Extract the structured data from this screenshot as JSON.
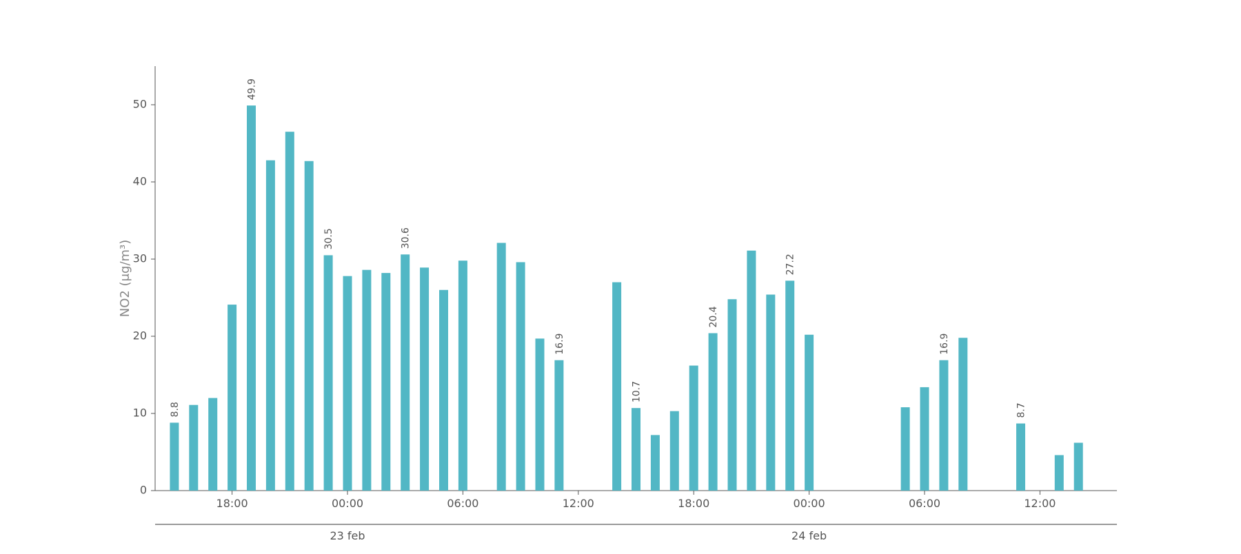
{
  "chart_data": {
    "type": "bar",
    "y_label": "NO2 (μg/m³)",
    "categories": [
      null,
      null,
      null,
      "18:00",
      null,
      null,
      null,
      null,
      null,
      "00:00",
      null,
      null,
      null,
      null,
      null,
      "06:00",
      null,
      null,
      null,
      null,
      null,
      "12:00",
      null,
      null,
      null,
      null,
      null,
      "18:00",
      null,
      null,
      null,
      null,
      null,
      "00:00",
      null,
      null,
      null,
      null,
      null,
      "06:00",
      null,
      null,
      null,
      null,
      null,
      "12:00",
      null,
      null
    ],
    "days": [
      null,
      null,
      null,
      null,
      null,
      null,
      null,
      null,
      null,
      "23 feb",
      null,
      null,
      null,
      null,
      null,
      null,
      null,
      null,
      null,
      null,
      null,
      null,
      null,
      null,
      null,
      null,
      null,
      null,
      null,
      null,
      null,
      null,
      null,
      "24 feb",
      null,
      null,
      null,
      null,
      null,
      null,
      null,
      null,
      null,
      null,
      null,
      null,
      null,
      null
    ],
    "values": [
      8.8,
      11.1,
      12.0,
      24.1,
      49.9,
      42.8,
      46.5,
      42.7,
      30.5,
      27.8,
      28.6,
      28.2,
      30.6,
      28.9,
      26.0,
      29.8,
      null,
      32.1,
      29.6,
      19.7,
      16.9,
      null,
      null,
      27.0,
      10.7,
      7.2,
      10.3,
      16.2,
      20.4,
      24.8,
      31.1,
      25.4,
      27.2,
      20.2,
      null,
      null,
      null,
      null,
      10.8,
      13.4,
      16.9,
      19.8,
      null,
      null,
      8.7,
      null,
      4.6,
      6.2
    ],
    "value_labels": [
      "8.8",
      null,
      null,
      null,
      "49.9",
      null,
      null,
      null,
      "30.5",
      null,
      null,
      null,
      "30.6",
      null,
      null,
      null,
      null,
      null,
      null,
      null,
      "16.9",
      null,
      null,
      null,
      "10.7",
      null,
      null,
      null,
      "20.4",
      null,
      null,
      null,
      "27.2",
      null,
      null,
      null,
      null,
      null,
      null,
      null,
      "16.9",
      null,
      null,
      null,
      "8.7",
      null,
      null,
      null
    ],
    "color": "#52b7c5",
    "ylim": [
      0,
      55
    ],
    "yticks": [
      0,
      10,
      20,
      30,
      40,
      50
    ]
  }
}
